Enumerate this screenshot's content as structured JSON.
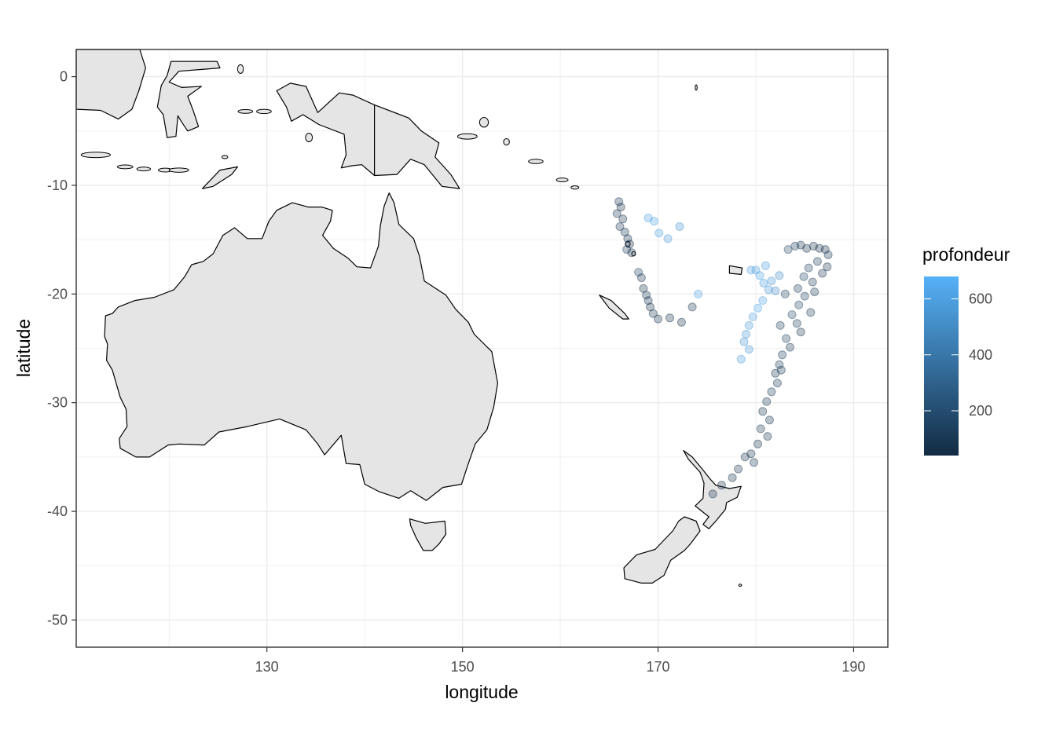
{
  "chart_data": {
    "type": "scatter",
    "subtype": "map",
    "title": "",
    "xlabel": "longitude",
    "ylabel": "latitude",
    "xlim": [
      110.5,
      193.5
    ],
    "ylim": [
      -52.5,
      2.5
    ],
    "x_ticks": [
      130,
      150,
      170,
      190
    ],
    "x_tick_labels": [
      "130",
      "150",
      "170",
      "190"
    ],
    "y_ticks": [
      0,
      -10,
      -20,
      -30,
      -40,
      -50
    ],
    "y_tick_labels": [
      "0",
      "-10",
      "-20",
      "-30",
      "-40",
      "-50"
    ],
    "grid": true,
    "legend": {
      "title": "profondeur",
      "placement": "right",
      "type": "colorbar",
      "range": [
        40,
        680
      ],
      "ticks": [
        200,
        400,
        600
      ],
      "tick_labels": [
        "200",
        "400",
        "600"
      ],
      "color_low": "#132b43",
      "color_high": "#56b1f7"
    },
    "colors": {
      "land_fill": "#e5e5e5",
      "land_stroke": "#000000",
      "grid": "#ebebeb",
      "panel_border": "#333333"
    },
    "series": [
      {
        "points": [
          [
            166.0,
            -11.5,
            80
          ],
          [
            166.2,
            -12.0,
            60
          ],
          [
            165.8,
            -12.6,
            90
          ],
          [
            166.4,
            -13.1,
            70
          ],
          [
            166.1,
            -13.8,
            100
          ],
          [
            166.6,
            -14.3,
            60
          ],
          [
            166.9,
            -14.9,
            80
          ],
          [
            167.1,
            -15.4,
            50
          ],
          [
            166.8,
            -15.9,
            120
          ],
          [
            167.3,
            -16.2,
            70
          ],
          [
            168.0,
            -18.0,
            150
          ],
          [
            168.3,
            -18.5,
            90
          ],
          [
            168.5,
            -19.5,
            70
          ],
          [
            168.8,
            -20.1,
            120
          ],
          [
            169.0,
            -20.6,
            80
          ],
          [
            169.2,
            -21.2,
            60
          ],
          [
            169.5,
            -21.8,
            100
          ],
          [
            170.0,
            -22.3,
            70
          ],
          [
            171.2,
            -22.2,
            60
          ],
          [
            172.4,
            -22.6,
            50
          ],
          [
            173.5,
            -21.2,
            90
          ],
          [
            169.0,
            -13.0,
            600
          ],
          [
            169.6,
            -13.3,
            620
          ],
          [
            170.1,
            -14.4,
            610
          ],
          [
            171.0,
            -14.9,
            590
          ],
          [
            172.2,
            -13.8,
            550
          ],
          [
            174.1,
            -20.0,
            600
          ],
          [
            180.0,
            -17.8,
            600
          ],
          [
            180.4,
            -18.3,
            620
          ],
          [
            180.8,
            -19.0,
            580
          ],
          [
            181.3,
            -19.6,
            560
          ],
          [
            180.7,
            -20.6,
            610
          ],
          [
            180.2,
            -21.3,
            640
          ],
          [
            179.7,
            -22.1,
            600
          ],
          [
            179.3,
            -22.9,
            580
          ],
          [
            179.0,
            -23.7,
            560
          ],
          [
            178.8,
            -24.4,
            540
          ],
          [
            179.3,
            -25.1,
            560
          ],
          [
            178.5,
            -26.0,
            590
          ],
          [
            181.6,
            -18.8,
            560
          ],
          [
            182.0,
            -19.7,
            520
          ],
          [
            181.0,
            -17.4,
            580
          ],
          [
            179.5,
            -17.8,
            600
          ],
          [
            182.4,
            -18.3,
            500
          ],
          [
            184.0,
            -15.6,
            120
          ],
          [
            184.6,
            -15.5,
            90
          ],
          [
            185.2,
            -15.8,
            60
          ],
          [
            185.9,
            -15.6,
            70
          ],
          [
            186.5,
            -15.8,
            80
          ],
          [
            187.1,
            -15.9,
            50
          ],
          [
            187.4,
            -16.4,
            90
          ],
          [
            186.3,
            -17.0,
            110
          ],
          [
            185.4,
            -17.6,
            130
          ],
          [
            184.9,
            -18.4,
            150
          ],
          [
            185.8,
            -18.9,
            100
          ],
          [
            186.8,
            -18.1,
            80
          ],
          [
            184.3,
            -19.5,
            120
          ],
          [
            185.0,
            -20.2,
            140
          ],
          [
            184.4,
            -21.0,
            160
          ],
          [
            183.7,
            -21.9,
            180
          ],
          [
            184.2,
            -22.7,
            120
          ],
          [
            184.6,
            -23.5,
            80
          ],
          [
            183.1,
            -24.1,
            130
          ],
          [
            183.5,
            -24.9,
            90
          ],
          [
            182.7,
            -25.6,
            110
          ],
          [
            182.4,
            -26.5,
            120
          ],
          [
            182.0,
            -27.3,
            80
          ],
          [
            182.2,
            -28.2,
            100
          ],
          [
            181.6,
            -29.0,
            110
          ],
          [
            181.1,
            -29.9,
            90
          ],
          [
            180.7,
            -30.8,
            70
          ],
          [
            181.4,
            -31.6,
            80
          ],
          [
            180.5,
            -32.4,
            100
          ],
          [
            181.2,
            -33.1,
            90
          ],
          [
            180.2,
            -33.8,
            70
          ],
          [
            179.5,
            -34.7,
            60
          ],
          [
            179.8,
            -35.5,
            90
          ],
          [
            178.9,
            -35.0,
            80
          ],
          [
            178.2,
            -36.1,
            70
          ],
          [
            177.6,
            -36.9,
            60
          ],
          [
            176.5,
            -37.6,
            50
          ],
          [
            175.6,
            -38.4,
            70
          ],
          [
            183.0,
            -20.0,
            150
          ],
          [
            182.5,
            -22.9,
            120
          ],
          [
            186.0,
            -19.8,
            90
          ],
          [
            185.6,
            -21.7,
            110
          ],
          [
            187.3,
            -17.5,
            70
          ],
          [
            183.3,
            -15.9,
            160
          ],
          [
            182.6,
            -27.0,
            110
          ]
        ]
      }
    ]
  }
}
